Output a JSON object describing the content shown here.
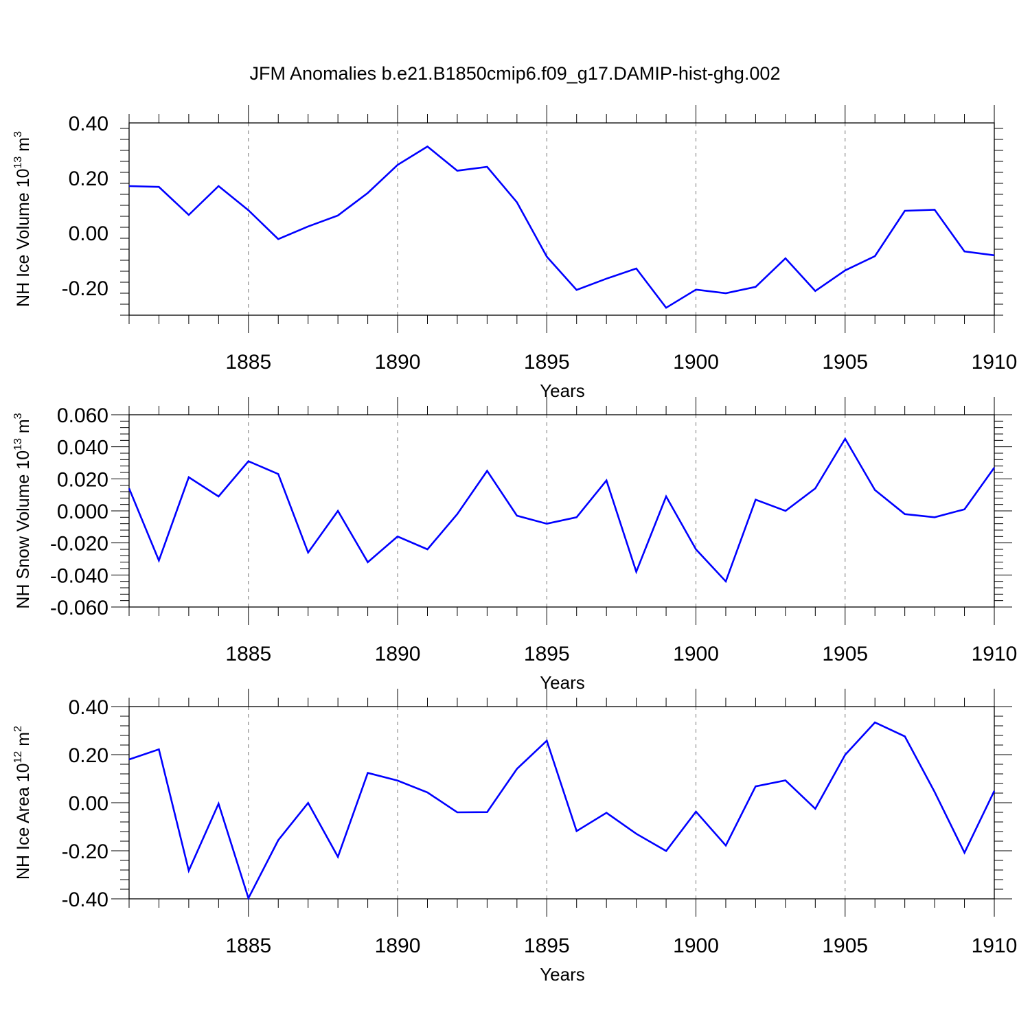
{
  "title": "JFM Anomalies b.e21.B1850cmip6.f09_g17.DAMIP-hist-ghg.002",
  "line_color": "#0000ff",
  "chart_data": [
    {
      "type": "line",
      "id": "ice-volume",
      "ylabel_main": "NH Ice Volume 10",
      "ylabel_exp": "13",
      "ylabel_unit": " m",
      "ylabel_unit_exp": "3",
      "xlabel": "Years",
      "xlim": [
        1881,
        1910
      ],
      "ylim": [
        -0.3,
        0.4
      ],
      "yticks": [
        -0.2,
        0.0,
        0.2,
        0.4
      ],
      "ytick_labels": [
        "-0.20",
        "0.00",
        "0.20",
        "0.40"
      ],
      "xticks": [
        1885,
        1890,
        1895,
        1900,
        1905,
        1910
      ],
      "xtick_labels": [
        "1885",
        "1890",
        "1895",
        "1900",
        "1905",
        "1910"
      ],
      "x": [
        1881,
        1882,
        1883,
        1884,
        1885,
        1886,
        1887,
        1888,
        1889,
        1890,
        1891,
        1892,
        1893,
        1894,
        1895,
        1896,
        1897,
        1898,
        1899,
        1900,
        1901,
        1902,
        1903,
        1904,
        1905,
        1906,
        1907,
        1908,
        1909,
        1910
      ],
      "values": [
        0.17,
        0.167,
        0.065,
        0.17,
        0.082,
        -0.023,
        0.023,
        0.063,
        0.145,
        0.247,
        0.314,
        0.226,
        0.24,
        0.111,
        -0.087,
        -0.208,
        -0.167,
        -0.13,
        -0.273,
        -0.207,
        -0.22,
        -0.197,
        -0.093,
        -0.212,
        -0.137,
        -0.085,
        0.08,
        0.084,
        -0.068,
        -0.082
      ]
    },
    {
      "type": "line",
      "id": "snow-volume",
      "ylabel_main": "NH Snow Volume 10",
      "ylabel_exp": "13",
      "ylabel_unit": " m",
      "ylabel_unit_exp": "3",
      "xlabel": "Years",
      "xlim": [
        1881,
        1910
      ],
      "ylim": [
        -0.06,
        0.06
      ],
      "yticks": [
        -0.06,
        -0.04,
        -0.02,
        0.0,
        0.02,
        0.04,
        0.06
      ],
      "ytick_labels": [
        "-0.060",
        "-0.040",
        "-0.020",
        "0.000",
        "0.020",
        "0.040",
        "0.060"
      ],
      "xticks": [
        1885,
        1890,
        1895,
        1900,
        1905,
        1910
      ],
      "xtick_labels": [
        "1885",
        "1890",
        "1895",
        "1900",
        "1905",
        "1910"
      ],
      "x": [
        1881,
        1882,
        1883,
        1884,
        1885,
        1886,
        1887,
        1888,
        1889,
        1890,
        1891,
        1892,
        1893,
        1894,
        1895,
        1896,
        1897,
        1898,
        1899,
        1900,
        1901,
        1902,
        1903,
        1904,
        1905,
        1906,
        1907,
        1908,
        1909,
        1910
      ],
      "values": [
        0.014,
        -0.031,
        0.021,
        0.009,
        0.031,
        0.023,
        -0.026,
        0.0,
        -0.032,
        -0.016,
        -0.024,
        -0.002,
        0.025,
        -0.003,
        -0.008,
        -0.004,
        0.019,
        -0.038,
        0.009,
        -0.024,
        -0.044,
        0.007,
        0.0,
        0.014,
        0.045,
        0.013,
        -0.002,
        -0.004,
        0.001,
        0.027
      ]
    },
    {
      "type": "line",
      "id": "ice-area",
      "ylabel_main": "NH Ice Area 10",
      "ylabel_exp": "12",
      "ylabel_unit": " m",
      "ylabel_unit_exp": "2",
      "xlabel": "Years",
      "xlim": [
        1881,
        1910
      ],
      "ylim": [
        -0.4,
        0.4
      ],
      "yticks": [
        -0.4,
        -0.2,
        0.0,
        0.2,
        0.4
      ],
      "ytick_labels": [
        "-0.40",
        "-0.20",
        "0.00",
        "0.20",
        "0.40"
      ],
      "xticks": [
        1885,
        1890,
        1895,
        1900,
        1905,
        1910
      ],
      "xtick_labels": [
        "1885",
        "1890",
        "1895",
        "1900",
        "1905",
        "1910"
      ],
      "x": [
        1881,
        1882,
        1883,
        1884,
        1885,
        1886,
        1887,
        1888,
        1889,
        1890,
        1891,
        1892,
        1893,
        1894,
        1895,
        1896,
        1897,
        1898,
        1899,
        1900,
        1901,
        1902,
        1903,
        1904,
        1905,
        1906,
        1907,
        1908,
        1909,
        1910
      ],
      "values": [
        0.18,
        0.222,
        -0.283,
        -0.004,
        -0.397,
        -0.156,
        -0.001,
        -0.225,
        0.124,
        0.092,
        0.043,
        -0.04,
        -0.039,
        0.141,
        0.258,
        -0.118,
        -0.042,
        -0.129,
        -0.201,
        -0.037,
        -0.178,
        0.068,
        0.093,
        -0.025,
        0.199,
        0.334,
        0.276,
        0.045,
        -0.208,
        0.049
      ]
    }
  ]
}
